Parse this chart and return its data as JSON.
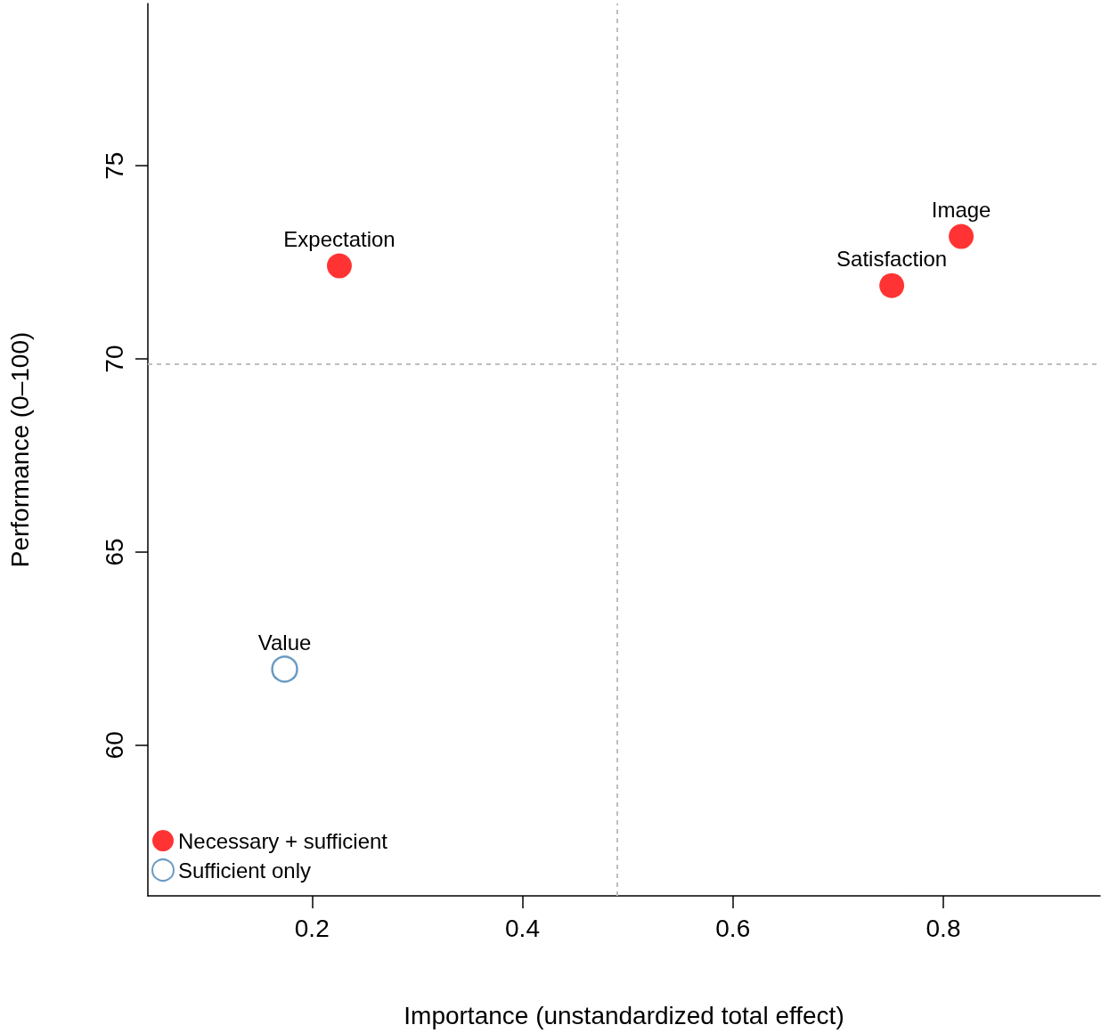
{
  "chart_data": {
    "type": "scatter",
    "xlabel": "Importance (unstandardized total effect)",
    "ylabel": "Performance (0–100)",
    "series": [
      {
        "name": "Necessary + sufficient",
        "color": "#ff0000",
        "x": [
          0.226,
          0.817,
          0.751
        ],
        "values": [
          72.41,
          73.17,
          71.9
        ]
      },
      {
        "name": "Sufficient only",
        "color": "#4682b4",
        "x": [
          0.174
        ],
        "values": [
          61.97
        ]
      }
    ],
    "annotations": [
      {
        "text": "Expectation",
        "x": 0.226,
        "y": 72.41
      },
      {
        "text": "Image",
        "x": 0.817,
        "y": 73.17
      },
      {
        "text": "Satisfaction",
        "x": 0.751,
        "y": 71.9
      },
      {
        "text": "Value",
        "x": 0.174,
        "y": 61.97
      }
    ],
    "ref_lines": [
      {
        "axis": "x",
        "value": 0.492,
        "color": "#bebebe",
        "line_style": "dashed"
      },
      {
        "axis": "y",
        "value": 69.86,
        "color": "#bebebe",
        "line_style": "dashed"
      }
    ],
    "xlim": [
      0.044,
      0.949
    ],
    "ylim": [
      56.1,
      79.2
    ],
    "xticks": [
      0.2,
      0.4,
      0.6,
      0.8
    ],
    "yticks": [
      60,
      65,
      70,
      75
    ],
    "marker": "circle",
    "legend": "bottom left",
    "grid": false
  }
}
